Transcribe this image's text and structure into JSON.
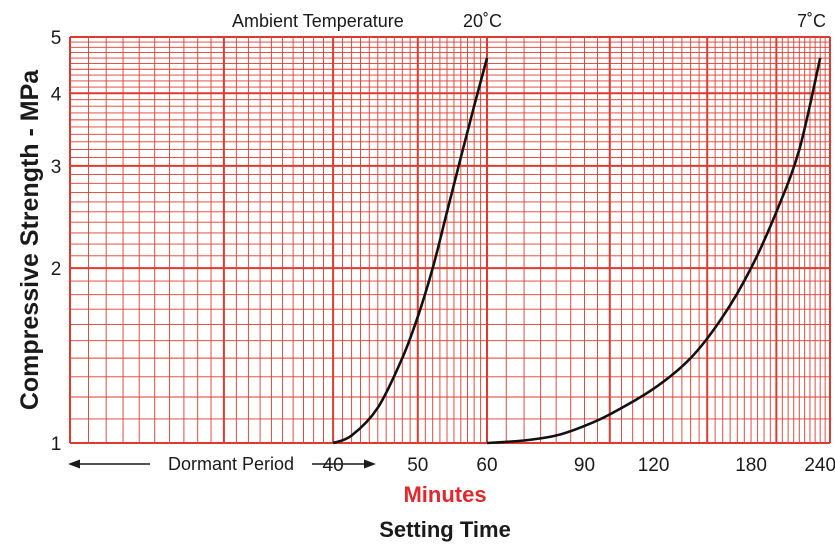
{
  "chart_data": {
    "type": "line",
    "title": "",
    "xlabel": "Minutes",
    "xlabel_secondary": "Setting Time",
    "ylabel": "Compressive Strength - MPa",
    "y_scale": "log",
    "ylim": [
      1,
      5
    ],
    "y_ticks": [
      "1",
      "2",
      "3",
      "4",
      "5"
    ],
    "panels": [
      {
        "x_scale": "log",
        "xlim": [
          20,
          60
        ],
        "x_ticks": [
          "40",
          "50",
          "60"
        ],
        "curve_label": "20˚C",
        "label_prefix": "Ambient Temperature",
        "points": [
          [
            40,
            1.0
          ],
          [
            42,
            1.03
          ],
          [
            45,
            1.15
          ],
          [
            48,
            1.4
          ],
          [
            50,
            1.65
          ],
          [
            52,
            2.0
          ],
          [
            54,
            2.5
          ],
          [
            56,
            3.1
          ],
          [
            58,
            3.8
          ],
          [
            60,
            4.6
          ]
        ]
      },
      {
        "x_scale": "log",
        "xlim": [
          60,
          250
        ],
        "x_ticks": [
          "90",
          "120",
          "180",
          "240"
        ],
        "curve_label": "7˚C",
        "points": [
          [
            60,
            1.0
          ],
          [
            70,
            1.01
          ],
          [
            80,
            1.03
          ],
          [
            90,
            1.07
          ],
          [
            100,
            1.12
          ],
          [
            120,
            1.24
          ],
          [
            140,
            1.4
          ],
          [
            160,
            1.65
          ],
          [
            180,
            2.0
          ],
          [
            200,
            2.5
          ],
          [
            220,
            3.2
          ],
          [
            240,
            4.6
          ]
        ]
      }
    ],
    "annotation": "Dormant Period",
    "grid": true,
    "grid_color": "#e03a2e",
    "curve_color": "#111111",
    "minutes_color": "#e0282e"
  }
}
